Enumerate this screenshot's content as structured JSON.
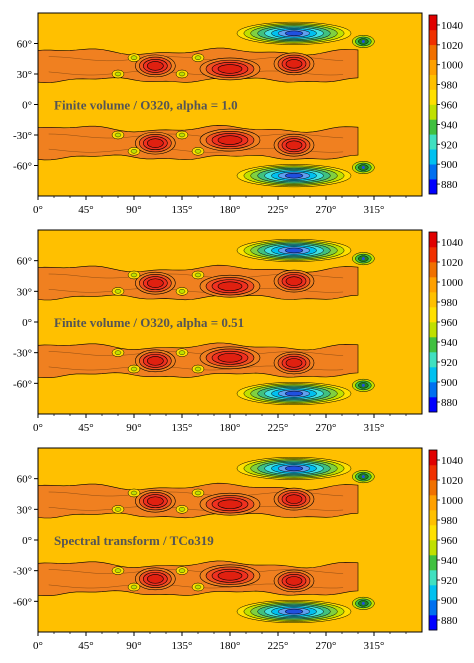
{
  "chart_data": [
    {
      "type": "heatmap",
      "label": "Finite volume / O320, alpha = 1.0",
      "x_ticks": [
        "0°",
        "45°",
        "90°",
        "135°",
        "180°",
        "225°",
        "270°",
        "315°"
      ],
      "x_tick_values": [
        0,
        45,
        90,
        135,
        180,
        225,
        270,
        315
      ],
      "xlim": [
        0,
        360
      ],
      "y_ticks": [
        "60°",
        "30°",
        "0°",
        "-30°",
        "-60°"
      ],
      "y_tick_values": [
        60,
        30,
        0,
        -30,
        -60
      ],
      "ylim": [
        -90,
        90
      ],
      "colorbar_ticks": [
        "1040",
        "1020",
        "1000",
        "980",
        "960",
        "940",
        "920",
        "900",
        "880"
      ],
      "colorbar_values": [
        1040,
        1020,
        1000,
        980,
        960,
        940,
        920,
        900,
        880
      ],
      "colorbar_range": [
        870,
        1050
      ],
      "background_value": 1000,
      "highs": [
        {
          "lon": 110,
          "lat": 38,
          "value": 1035
        },
        {
          "lon": 180,
          "lat": 35,
          "value": 1038
        },
        {
          "lon": 240,
          "lat": 40,
          "value": 1032
        },
        {
          "lon": 110,
          "lat": -38,
          "value": 1035
        },
        {
          "lon": 180,
          "lat": -35,
          "value": 1038
        },
        {
          "lon": 240,
          "lat": -40,
          "value": 1032
        }
      ],
      "lows": [
        {
          "lon": 240,
          "lat": 70,
          "value": 885
        },
        {
          "lon": 305,
          "lat": 62,
          "value": 960
        },
        {
          "lon": 240,
          "lat": -70,
          "value": 885
        },
        {
          "lon": 305,
          "lat": -62,
          "value": 960
        }
      ]
    },
    {
      "type": "heatmap",
      "label": "Finite volume / O320, alpha = 0.51",
      "x_ticks": [
        "0°",
        "45°",
        "90°",
        "135°",
        "180°",
        "225°",
        "270°",
        "315°"
      ],
      "x_tick_values": [
        0,
        45,
        90,
        135,
        180,
        225,
        270,
        315
      ],
      "xlim": [
        0,
        360
      ],
      "y_ticks": [
        "60°",
        "30°",
        "0°",
        "-30°",
        "-60°"
      ],
      "y_tick_values": [
        60,
        30,
        0,
        -30,
        -60
      ],
      "ylim": [
        -90,
        90
      ],
      "colorbar_ticks": [
        "1040",
        "1020",
        "1000",
        "980",
        "960",
        "940",
        "920",
        "900",
        "880"
      ],
      "colorbar_values": [
        1040,
        1020,
        1000,
        980,
        960,
        940,
        920,
        900,
        880
      ],
      "colorbar_range": [
        870,
        1050
      ],
      "background_value": 1000,
      "highs": [
        {
          "lon": 110,
          "lat": 38,
          "value": 1035
        },
        {
          "lon": 180,
          "lat": 35,
          "value": 1038
        },
        {
          "lon": 240,
          "lat": 40,
          "value": 1032
        },
        {
          "lon": 110,
          "lat": -38,
          "value": 1035
        },
        {
          "lon": 180,
          "lat": -35,
          "value": 1038
        },
        {
          "lon": 240,
          "lat": -40,
          "value": 1032
        }
      ],
      "lows": [
        {
          "lon": 240,
          "lat": 70,
          "value": 885
        },
        {
          "lon": 305,
          "lat": 62,
          "value": 960
        },
        {
          "lon": 240,
          "lat": -70,
          "value": 885
        },
        {
          "lon": 305,
          "lat": -62,
          "value": 960
        }
      ]
    },
    {
      "type": "heatmap",
      "label": "Spectral transform / TCo319",
      "x_ticks": [
        "0°",
        "45°",
        "90°",
        "135°",
        "180°",
        "225°",
        "270°",
        "315°"
      ],
      "x_tick_values": [
        0,
        45,
        90,
        135,
        180,
        225,
        270,
        315
      ],
      "xlim": [
        0,
        360
      ],
      "y_ticks": [
        "60°",
        "30°",
        "0°",
        "-30°",
        "-60°"
      ],
      "y_tick_values": [
        60,
        30,
        0,
        -30,
        -60
      ],
      "ylim": [
        -90,
        90
      ],
      "colorbar_ticks": [
        "1040",
        "1020",
        "1000",
        "980",
        "960",
        "940",
        "920",
        "900",
        "880"
      ],
      "colorbar_values": [
        1040,
        1020,
        1000,
        980,
        960,
        940,
        920,
        900,
        880
      ],
      "colorbar_range": [
        870,
        1050
      ],
      "background_value": 1000,
      "highs": [
        {
          "lon": 110,
          "lat": 38,
          "value": 1035
        },
        {
          "lon": 180,
          "lat": 35,
          "value": 1038
        },
        {
          "lon": 240,
          "lat": 40,
          "value": 1032
        },
        {
          "lon": 110,
          "lat": -38,
          "value": 1035
        },
        {
          "lon": 180,
          "lat": -35,
          "value": 1038
        },
        {
          "lon": 240,
          "lat": -40,
          "value": 1032
        }
      ],
      "lows": [
        {
          "lon": 240,
          "lat": 70,
          "value": 880
        },
        {
          "lon": 305,
          "lat": 62,
          "value": 960
        },
        {
          "lon": 240,
          "lat": -70,
          "value": 880
        },
        {
          "lon": 305,
          "lat": -62,
          "value": 960
        }
      ]
    }
  ],
  "colors": {
    "background_field": "#FFC000",
    "ridge_band": "#F08020",
    "high_core": "#F03020",
    "low_core": "#2050E0",
    "colormap": [
      "#0000FF",
      "#0070F0",
      "#00C0F0",
      "#40E0C0",
      "#40C040",
      "#C0E000",
      "#FFE000",
      "#FFC000",
      "#FFA000",
      "#F07000",
      "#F03000",
      "#E00000"
    ]
  }
}
